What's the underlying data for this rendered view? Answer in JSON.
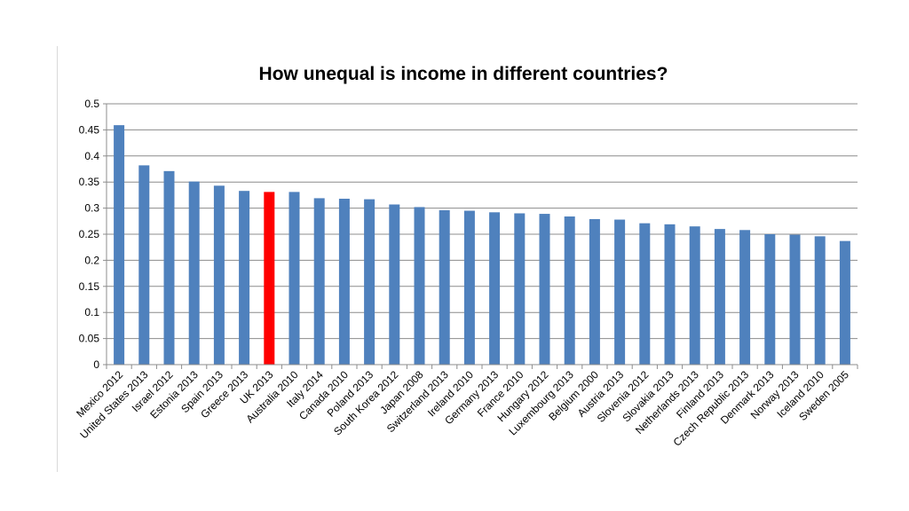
{
  "chart_data": {
    "type": "bar",
    "title": "How unequal is income in different countries?",
    "xlabel": "",
    "ylabel": "",
    "ylim": [
      0,
      0.5
    ],
    "yticks": [
      "0",
      "0.05",
      "0.1",
      "0.15",
      "0.2",
      "0.25",
      "0.3",
      "0.35",
      "0.4",
      "0.45",
      "0.5"
    ],
    "grid": true,
    "legend": "none",
    "bar_color": "#4f81bd",
    "highlight_color": "#ff0000",
    "highlight_category": "UK 2013",
    "categories": [
      "Mexico 2012",
      "United States 2013",
      "Israel 2012",
      "Estonia 2013",
      "Spain 2013",
      "Greece 2013",
      "UK 2013",
      "Australia 2010",
      "Italy 2014",
      "Canada 2010",
      "Poland 2013",
      "South Korea 2012",
      "Japan 2008",
      "Switzerland 2013",
      "Ireland 2010",
      "Germany 2013",
      "France 2010",
      "Hungary 2012",
      "Luxembourg 2013",
      "Belgium 2000",
      "Austria 2013",
      "Slovenia 2012",
      "Slovakia 2013",
      "Netherlands 2013",
      "Finland 2013",
      "Czech Republic 2013",
      "Denmark 2013",
      "Norway 2013",
      "Iceland 2010",
      "Sweden 2005"
    ],
    "values": [
      0.459,
      0.382,
      0.371,
      0.351,
      0.343,
      0.333,
      0.331,
      0.331,
      0.319,
      0.318,
      0.317,
      0.307,
      0.302,
      0.296,
      0.295,
      0.292,
      0.29,
      0.289,
      0.284,
      0.279,
      0.278,
      0.271,
      0.269,
      0.265,
      0.26,
      0.258,
      0.25,
      0.249,
      0.246,
      0.237
    ]
  }
}
